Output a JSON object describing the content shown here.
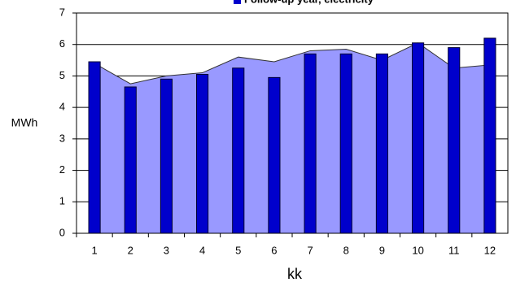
{
  "chart_data": {
    "type": "bar-area",
    "legend_label": "Follow-up year, electricity",
    "x_label": "kk",
    "y_label": "MWh",
    "categories": [
      "1",
      "2",
      "3",
      "4",
      "5",
      "6",
      "7",
      "8",
      "9",
      "10",
      "11",
      "12"
    ],
    "series": [
      {
        "type": "area",
        "color": "#9999ff",
        "values": [
          5.4,
          4.75,
          5.0,
          5.1,
          5.6,
          5.45,
          5.8,
          5.85,
          5.5,
          6.05,
          5.25,
          5.35
        ]
      },
      {
        "type": "bar",
        "name": "Follow-up year, electricity",
        "color": "#0000cc",
        "values": [
          5.45,
          4.65,
          4.9,
          5.05,
          5.25,
          4.95,
          5.7,
          5.7,
          5.7,
          6.05,
          5.9,
          6.2
        ]
      }
    ],
    "ylim": [
      0,
      7
    ],
    "yticks": [
      0,
      1,
      2,
      3,
      4,
      5,
      6,
      7
    ],
    "grid": true
  }
}
